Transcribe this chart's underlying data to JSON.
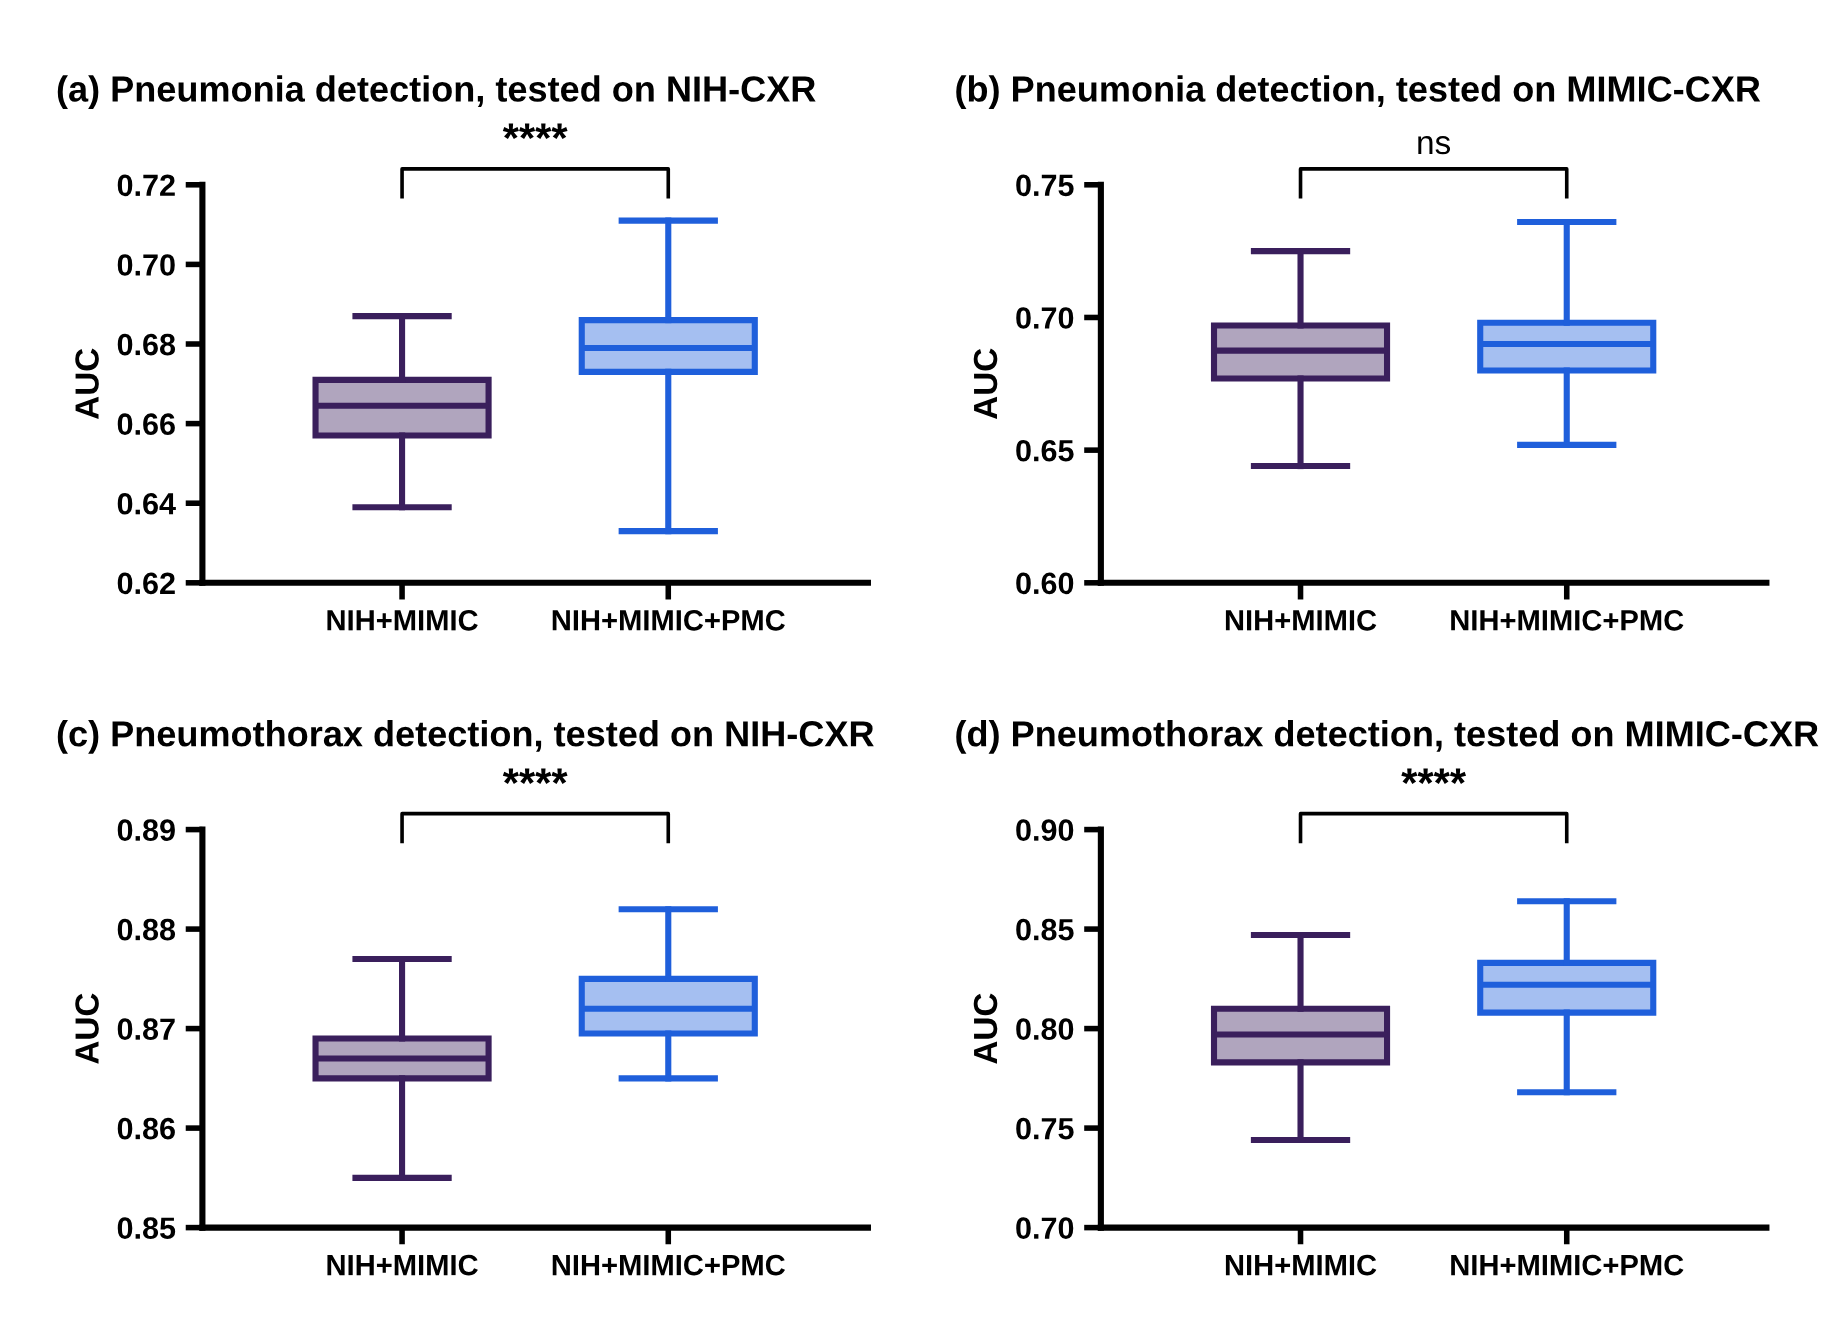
{
  "chart_data": [
    {
      "type": "box",
      "title": "(a) Pneumonia detection, tested on NIH-CXR",
      "ylabel": "AUC",
      "categories": [
        "NIH+MIMIC",
        "NIH+MIMIC+PMC"
      ],
      "colors": [
        "#3a1f5c",
        "#1f5fdb"
      ],
      "ylim": [
        0.62,
        0.72
      ],
      "yticks": [
        {
          "value": 0.62,
          "label": "0.62"
        },
        {
          "value": 0.64,
          "label": "0.64"
        },
        {
          "value": 0.66,
          "label": "0.66"
        },
        {
          "value": 0.68,
          "label": "0.68"
        },
        {
          "value": 0.7,
          "label": "0.70"
        },
        {
          "value": 0.72,
          "label": "0.72"
        }
      ],
      "grid": false,
      "annotations": [
        "****"
      ],
      "boxes": [
        {
          "low": 0.639,
          "q1": 0.657,
          "median": 0.6645,
          "q3": 0.671,
          "high": 0.687
        },
        {
          "low": 0.633,
          "q1": 0.673,
          "median": 0.679,
          "q3": 0.686,
          "high": 0.711
        }
      ]
    },
    {
      "type": "box",
      "title": "(b) Pneumonia detection, tested on MIMIC-CXR",
      "ylabel": "AUC",
      "categories": [
        "NIH+MIMIC",
        "NIH+MIMIC+PMC"
      ],
      "colors": [
        "#3a1f5c",
        "#1f5fdb"
      ],
      "ylim": [
        0.6,
        0.75
      ],
      "yticks": [
        {
          "value": 0.6,
          "label": "0.60"
        },
        {
          "value": 0.65,
          "label": "0.65"
        },
        {
          "value": 0.7,
          "label": "0.70"
        },
        {
          "value": 0.75,
          "label": "0.75"
        }
      ],
      "grid": false,
      "annotations": [
        "ns"
      ],
      "boxes": [
        {
          "low": 0.644,
          "q1": 0.677,
          "median": 0.6875,
          "q3": 0.697,
          "high": 0.725
        },
        {
          "low": 0.652,
          "q1": 0.68,
          "median": 0.69,
          "q3": 0.698,
          "high": 0.736
        }
      ]
    },
    {
      "type": "box",
      "title": "(c) Pneumothorax detection, tested on NIH-CXR",
      "ylabel": "AUC",
      "categories": [
        "NIH+MIMIC",
        "NIH+MIMIC+PMC"
      ],
      "colors": [
        "#3a1f5c",
        "#1f5fdb"
      ],
      "ylim": [
        0.85,
        0.89
      ],
      "yticks": [
        0.85,
        0.86,
        0.87,
        0.88,
        0.89
      ],
      "grid": false,
      "annotations": [
        "****"
      ],
      "boxes": [
        {
          "low": 0.855,
          "q1": 0.865,
          "median": 0.867,
          "q3": 0.869,
          "high": 0.877
        },
        {
          "low": 0.865,
          "q1": 0.8695,
          "median": 0.872,
          "q3": 0.875,
          "high": 0.882
        }
      ]
    },
    {
      "type": "box",
      "title": "(d) Pneumothorax detection, tested on MIMIC-CXR",
      "ylabel": "AUC",
      "categories": [
        "NIH+MIMIC",
        "NIH+MIMIC+PMC"
      ],
      "colors": [
        "#3a1f5c",
        "#1f5fdb"
      ],
      "ylim": [
        0.7,
        0.9
      ],
      "yticks": [
        {
          "value": 0.7,
          "label": "0.70"
        },
        {
          "value": 0.75,
          "label": "0.75"
        },
        {
          "value": 0.8,
          "label": "0.80"
        },
        {
          "value": 0.85,
          "label": "0.85"
        },
        {
          "value": 0.9,
          "label": "0.90"
        }
      ],
      "grid": false,
      "annotations": [
        "****"
      ],
      "boxes": [
        {
          "low": 0.744,
          "q1": 0.783,
          "median": 0.797,
          "q3": 0.81,
          "high": 0.847
        },
        {
          "low": 0.768,
          "q1": 0.808,
          "median": 0.822,
          "q3": 0.833,
          "high": 0.864
        }
      ]
    }
  ]
}
